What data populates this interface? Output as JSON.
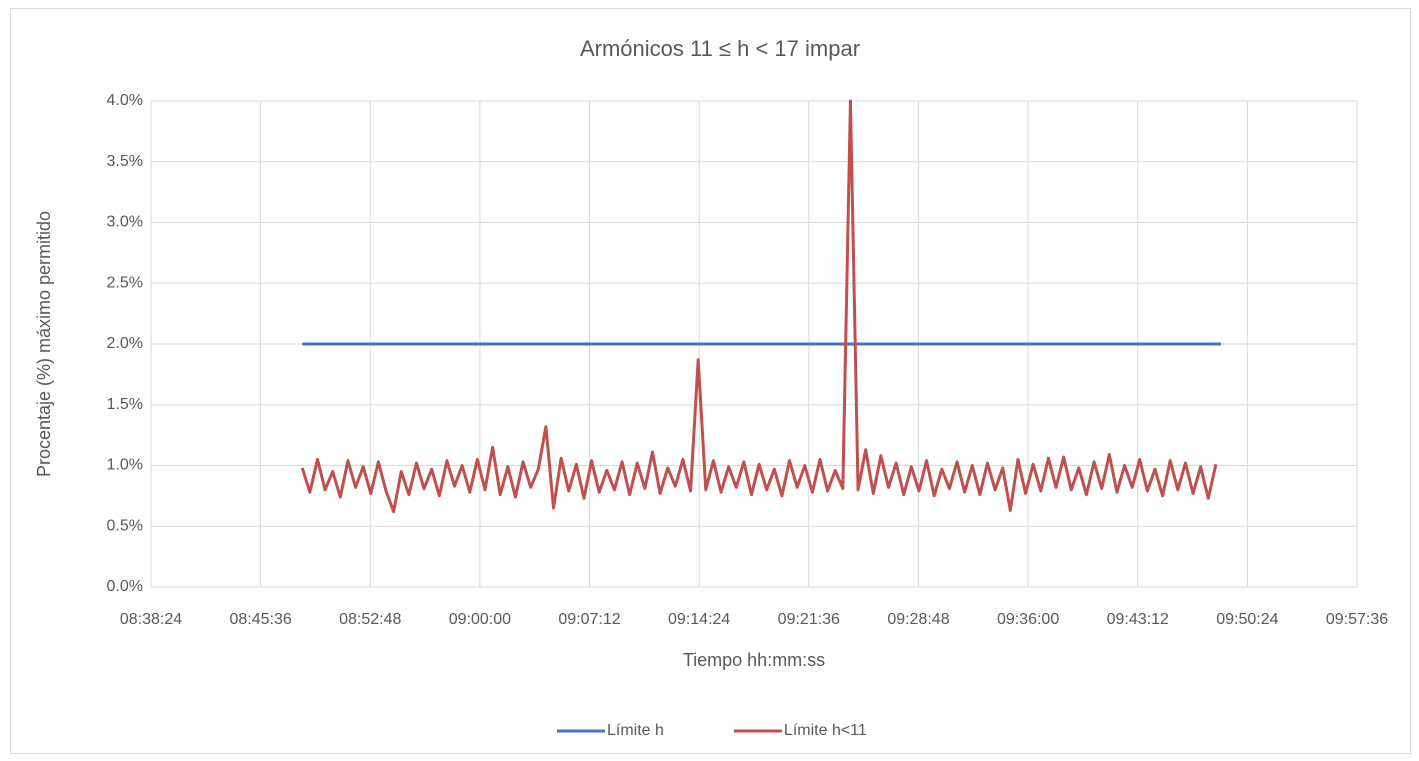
{
  "chart_data": {
    "type": "line",
    "title": "Armónicos 11 ≤ h < 17 impar",
    "x_label": "Tiempo hh:mm:ss",
    "y_label": "Procentaje (%) máximo permitido",
    "xlim": [
      31104,
      35856
    ],
    "xticks": [
      {
        "value": 31104,
        "label": "08:38:24"
      },
      {
        "value": 31536,
        "label": "08:45:36"
      },
      {
        "value": 31968,
        "label": "08:52:48"
      },
      {
        "value": 32400,
        "label": "09:00:00"
      },
      {
        "value": 32832,
        "label": "09:07:12"
      },
      {
        "value": 33264,
        "label": "09:14:24"
      },
      {
        "value": 33696,
        "label": "09:21:36"
      },
      {
        "value": 34128,
        "label": "09:28:48"
      },
      {
        "value": 34560,
        "label": "09:36:00"
      },
      {
        "value": 34992,
        "label": "09:43:12"
      },
      {
        "value": 35424,
        "label": "09:50:24"
      },
      {
        "value": 35856,
        "label": "09:57:36"
      }
    ],
    "ylim": [
      0,
      4
    ],
    "yticks": [
      {
        "value": 0,
        "label": "0.0%"
      },
      {
        "value": 0.5,
        "label": "0.5%"
      },
      {
        "value": 1,
        "label": "1.0%"
      },
      {
        "value": 1.5,
        "label": "1.5%"
      },
      {
        "value": 2,
        "label": "2.0%"
      },
      {
        "value": 2.5,
        "label": "2.5%"
      },
      {
        "value": 3,
        "label": "3.0%"
      },
      {
        "value": 3.5,
        "label": "3.5%"
      },
      {
        "value": 4,
        "label": "4.0%"
      }
    ],
    "grid": true,
    "legend": "bottom",
    "series": [
      {
        "name": "Límite h",
        "color": "#4472c4",
        "x": [
          31700,
          35320
        ],
        "values": [
          2,
          2
        ]
      },
      {
        "name": "Límite h<11",
        "color": "#c0504d",
        "x": [
          31700,
          31730,
          31760,
          31790,
          31820,
          31850,
          31880,
          31910,
          31940,
          31970,
          32000,
          32030,
          32060,
          32090,
          32120,
          32150,
          32180,
          32210,
          32240,
          32270,
          32300,
          32330,
          32360,
          32390,
          32420,
          32450,
          32480,
          32510,
          32540,
          32570,
          32600,
          32630,
          32660,
          32690,
          32720,
          32750,
          32780,
          32810,
          32840,
          32870,
          32900,
          32930,
          32960,
          32990,
          33020,
          33050,
          33080,
          33110,
          33140,
          33170,
          33200,
          33230,
          33260,
          33290,
          33320,
          33350,
          33380,
          33410,
          33440,
          33470,
          33500,
          33530,
          33560,
          33590,
          33620,
          33650,
          33680,
          33710,
          33740,
          33770,
          33800,
          33830,
          33860,
          33890,
          33920,
          33950,
          33980,
          34010,
          34040,
          34070,
          34100,
          34130,
          34160,
          34190,
          34220,
          34250,
          34280,
          34310,
          34340,
          34370,
          34400,
          34430,
          34460,
          34490,
          34520,
          34550,
          34580,
          34610,
          34640,
          34670,
          34700,
          34730,
          34760,
          34790,
          34820,
          34850,
          34880,
          34910,
          34940,
          34970,
          35000,
          35030,
          35060,
          35090,
          35120,
          35150,
          35180,
          35210,
          35240,
          35270,
          35300
        ],
        "values": [
          0.98,
          0.78,
          1.05,
          0.8,
          0.95,
          0.74,
          1.04,
          0.82,
          0.99,
          0.77,
          1.03,
          0.79,
          0.62,
          0.95,
          0.76,
          1.02,
          0.81,
          0.97,
          0.75,
          1.04,
          0.83,
          1.0,
          0.78,
          1.05,
          0.8,
          1.15,
          0.76,
          0.99,
          0.74,
          1.03,
          0.82,
          0.97,
          1.32,
          0.65,
          1.06,
          0.79,
          1.01,
          0.73,
          1.04,
          0.78,
          0.96,
          0.8,
          1.03,
          0.76,
          1.02,
          0.81,
          1.11,
          0.77,
          0.98,
          0.83,
          1.05,
          0.79,
          1.87,
          0.8,
          1.04,
          0.78,
          0.99,
          0.82,
          1.03,
          0.76,
          1.01,
          0.8,
          0.97,
          0.75,
          1.04,
          0.82,
          1.0,
          0.78,
          1.05,
          0.79,
          0.96,
          0.81,
          4.0,
          0.8,
          1.13,
          0.77,
          1.08,
          0.82,
          1.02,
          0.76,
          0.99,
          0.79,
          1.04,
          0.75,
          0.97,
          0.81,
          1.03,
          0.78,
          1.0,
          0.76,
          1.02,
          0.8,
          0.98,
          0.63,
          1.05,
          0.77,
          1.01,
          0.79,
          1.06,
          0.82,
          1.07,
          0.8,
          0.98,
          0.76,
          1.03,
          0.81,
          1.09,
          0.78,
          1.0,
          0.82,
          1.05,
          0.79,
          0.97,
          0.75,
          1.04,
          0.8,
          1.02,
          0.77,
          0.99,
          0.73,
          1.01
        ]
      }
    ]
  }
}
